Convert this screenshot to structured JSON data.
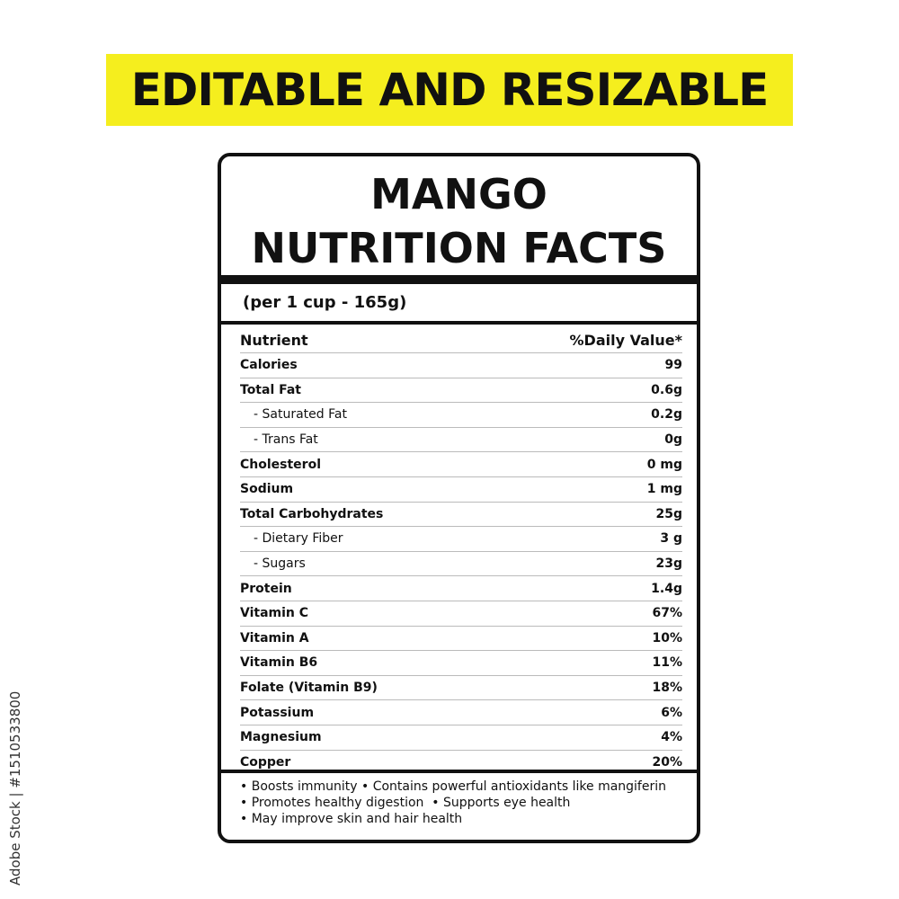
{
  "banner": "EDITABLE AND RESIZABLE",
  "title_line1": "MANGO",
  "title_line2": "NUTRITION FACTS",
  "serving": "(per 1 cup - 165g)",
  "header": {
    "nutrient": "Nutrient",
    "value": "%Daily Value*"
  },
  "rows": [
    {
      "name": "Calories",
      "value": "99",
      "sub": false
    },
    {
      "name": "Total Fat",
      "value": "0.6g",
      "sub": false
    },
    {
      "name": "- Saturated Fat",
      "value": "0.2g",
      "sub": true
    },
    {
      "name": "- Trans Fat",
      "value": "0g",
      "sub": true
    },
    {
      "name": "Cholesterol",
      "value": "0 mg",
      "sub": false
    },
    {
      "name": "Sodium",
      "value": "1 mg",
      "sub": false
    },
    {
      "name": "Total Carbohydrates",
      "value": "25g",
      "sub": false
    },
    {
      "name": "- Dietary Fiber",
      "value": "3 g",
      "sub": true
    },
    {
      "name": "- Sugars",
      "value": "23g",
      "sub": true
    },
    {
      "name": "Protein",
      "value": "1.4g",
      "sub": false
    },
    {
      "name": "Vitamin C",
      "value": "67%",
      "sub": false
    },
    {
      "name": "Vitamin A",
      "value": "10%",
      "sub": false
    },
    {
      "name": "Vitamin B6",
      "value": "11%",
      "sub": false
    },
    {
      "name": "Folate (Vitamin B9)",
      "value": "18%",
      "sub": false
    },
    {
      "name": "Potassium",
      "value": "6%",
      "sub": false
    },
    {
      "name": "Magnesium",
      "value": "4%",
      "sub": false
    },
    {
      "name": "Copper",
      "value": "20%",
      "sub": false
    }
  ],
  "benefits": [
    "• Boosts immunity • Contains powerful antioxidants like mangiferin",
    "• Promotes healthy digestion  • Supports eye health",
    "• May improve skin and hair health"
  ],
  "watermark": "Adobe Stock | #1510533800",
  "colors": {
    "banner": "#f5ee1e",
    "ink": "#111111"
  }
}
